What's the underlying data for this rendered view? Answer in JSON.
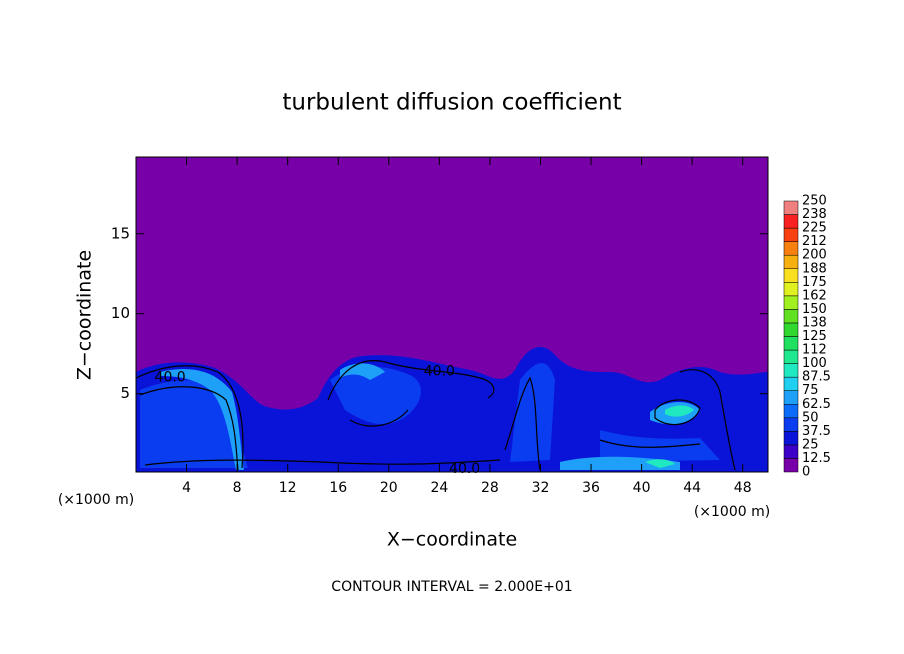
{
  "chart_data": {
    "type": "contour",
    "title": "turbulent diffusion coefficient",
    "xlabel": "X−coordinate",
    "ylabel": "Z−coordinate",
    "x_unit": "(×1000 m)",
    "y_unit": "(×1000 m)",
    "footer": "CONTOUR INTERVAL = 2.000E+01",
    "xlim": [
      0,
      50
    ],
    "ylim": [
      0.1,
      19.8
    ],
    "xticks": [
      4,
      8,
      12,
      16,
      20,
      24,
      28,
      32,
      36,
      40,
      44,
      48
    ],
    "yticks": [
      5,
      10,
      15
    ],
    "grid": false,
    "colorbar": {
      "levels": [
        0,
        12.5,
        25,
        37.5,
        50,
        62.5,
        75,
        87.5,
        100,
        {
          "value": 112.5,
          "label": "112"
        },
        125,
        {
          "value": 137.5,
          "label": "138"
        },
        150,
        {
          "value": 162.5,
          "label": "162"
        },
        175,
        {
          "value": 187.5,
          "label": "188"
        },
        200,
        {
          "value": 212.5,
          "label": "212"
        },
        225,
        {
          "value": 237.5,
          "label": "238"
        },
        250
      ],
      "colors": [
        "#7800a8",
        "#3c00c8",
        "#0a14d8",
        "#0a3cf0",
        "#0a6cf8",
        "#1ea0f8",
        "#20d0f0",
        "#20e8c0",
        "#20e890",
        "#20e060",
        "#30d830",
        "#60e020",
        "#a0f020",
        "#e0f020",
        "#f8e020",
        "#f8b010",
        "#f88010",
        "#f84010",
        "#f82020",
        "#f08080"
      ]
    },
    "contour_labels": [
      {
        "x": 2.7,
        "y": 6.0,
        "value": 40,
        "label": "40.0"
      },
      {
        "x": 24.0,
        "y": 6.4,
        "value": 40,
        "label": "40.0"
      },
      {
        "x": 26.0,
        "y": 0.3,
        "value": 40,
        "label": "40.0"
      }
    ]
  }
}
